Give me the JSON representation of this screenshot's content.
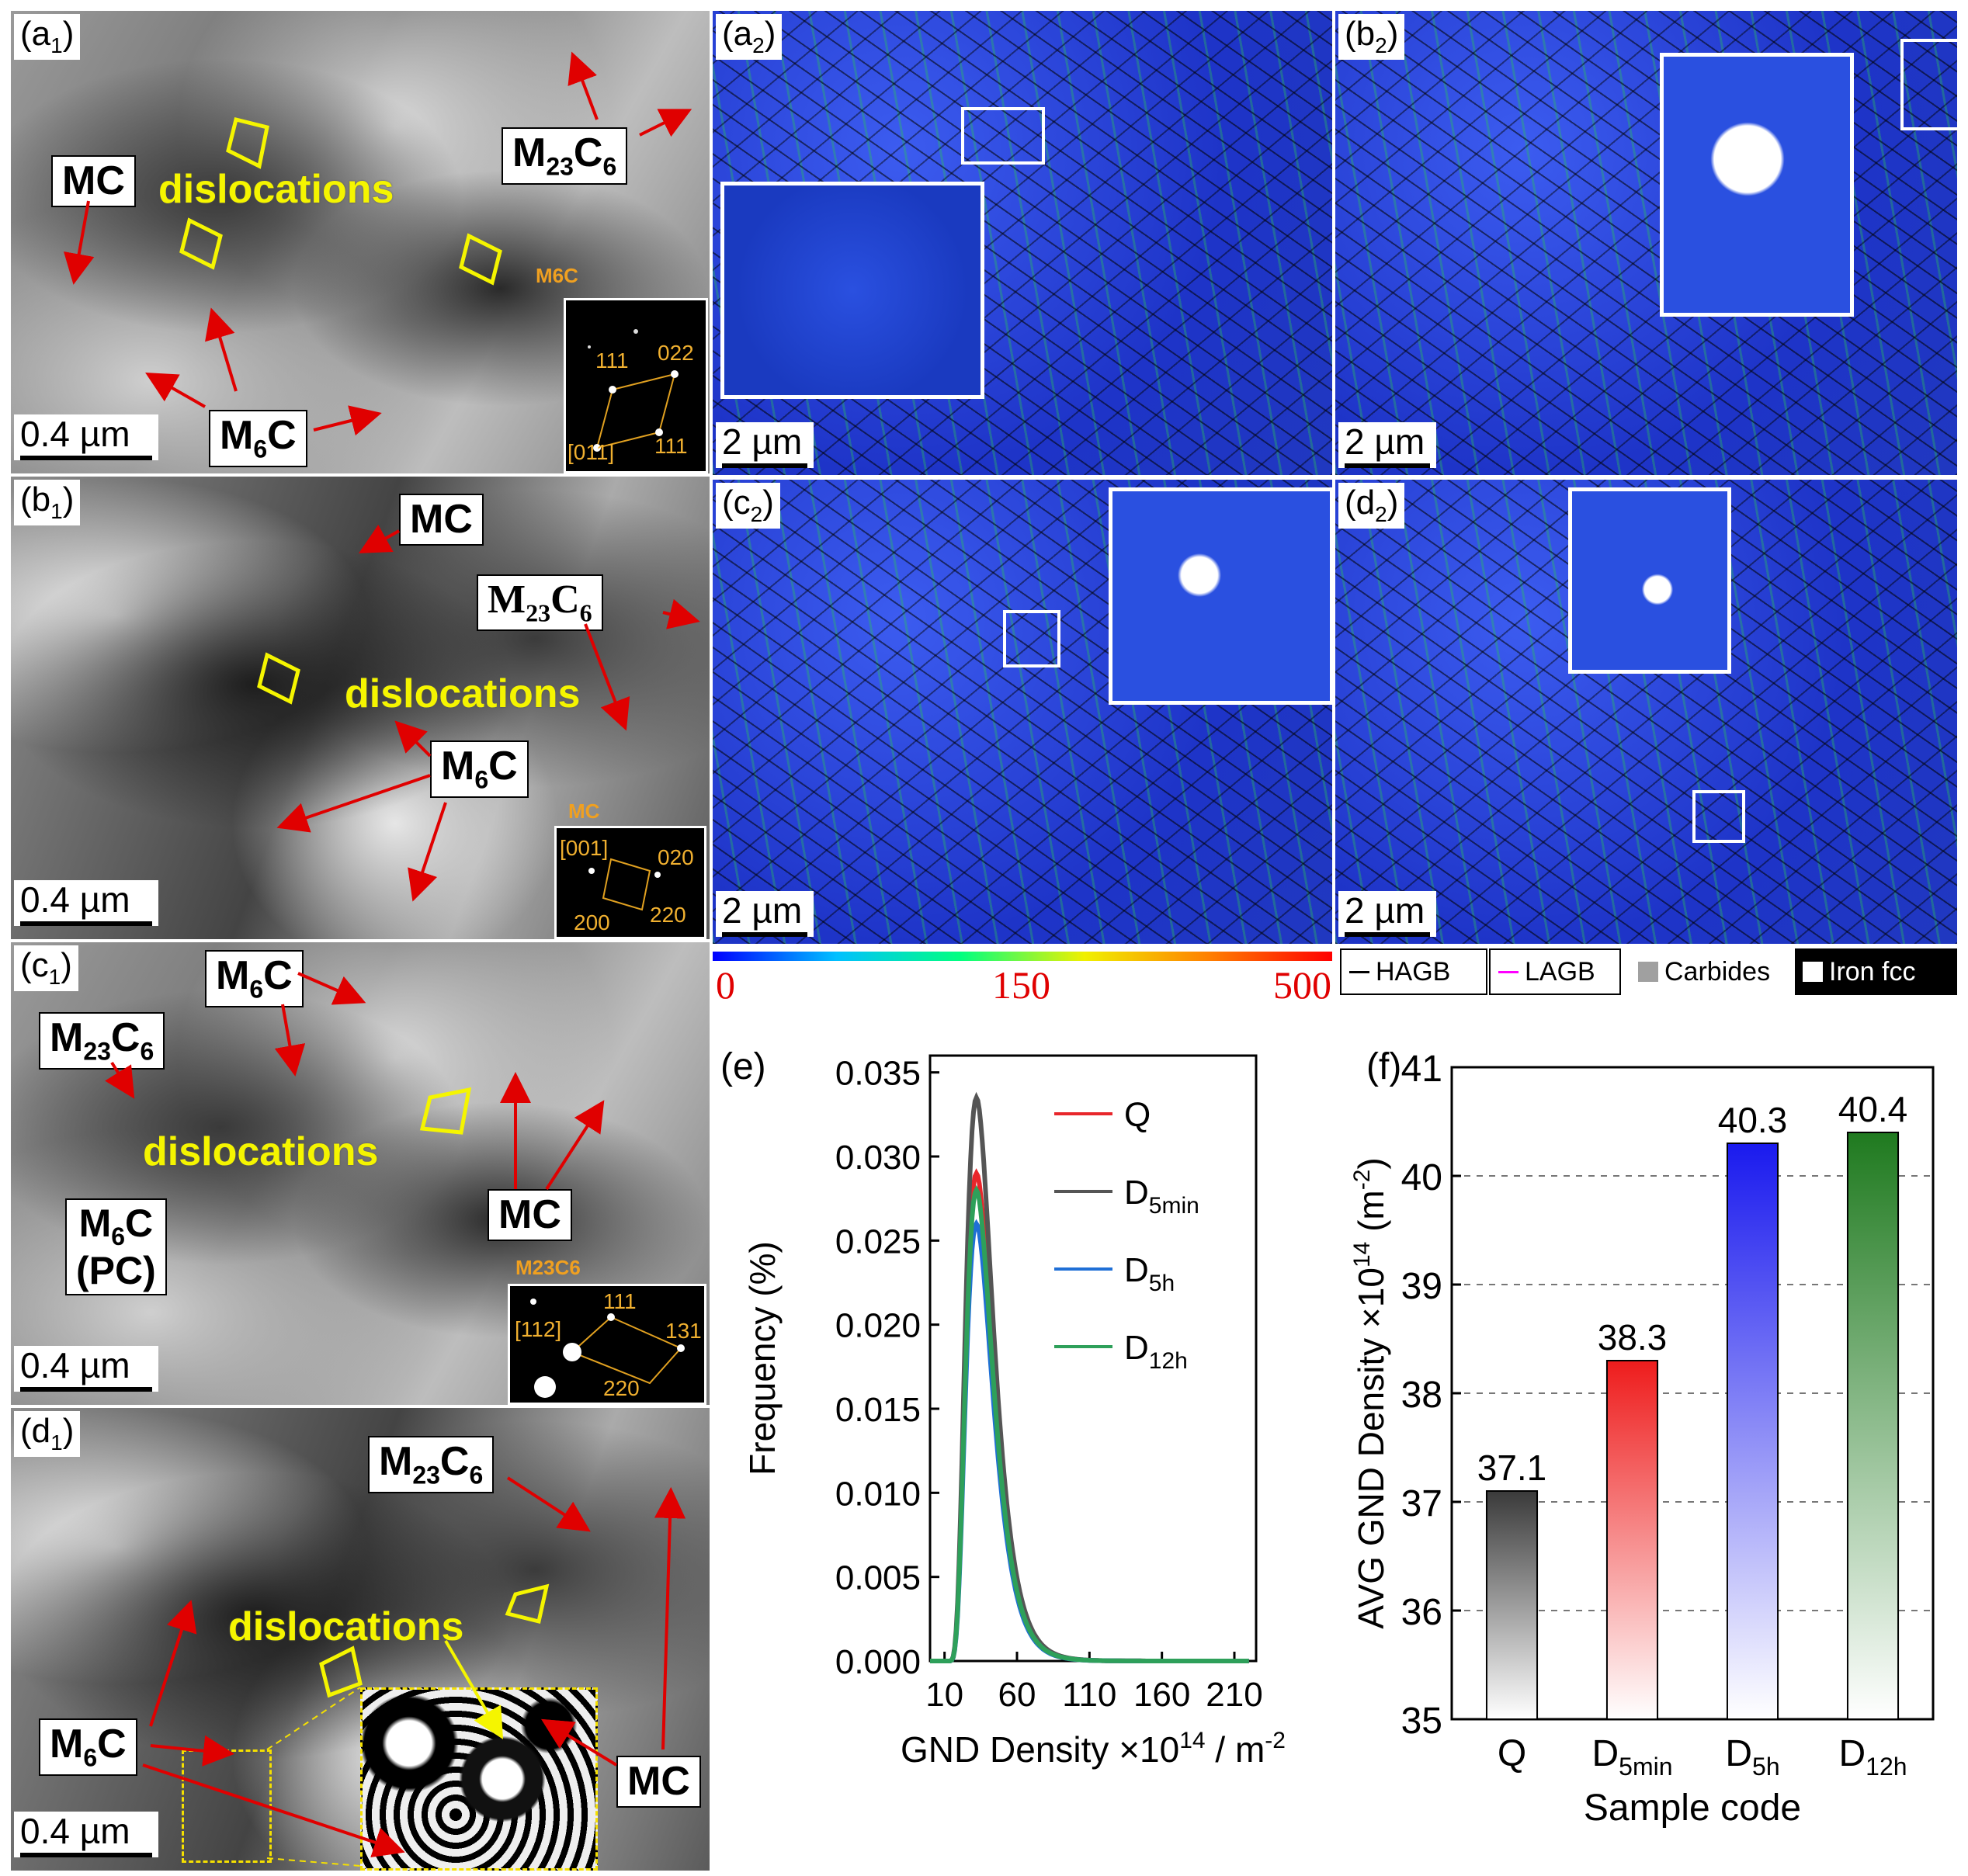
{
  "panels_tem": {
    "a1": {
      "label": "(a",
      "sub": "1",
      "label_end": ")",
      "scale": "0.4 µm",
      "dislocations": "dislocations",
      "mc": "MC",
      "m6c": "M",
      "m6c_sub": "6",
      "m6c_end": "C",
      "m23": "M",
      "m23_sub": "23",
      "m23_mid": "C",
      "m23_sub2": "6",
      "saed_tag": "M6C",
      "saed_labels": [
        "111",
        "022",
        "[011]",
        "111"
      ]
    },
    "b1": {
      "label": "(b",
      "sub": "1",
      "label_end": ")",
      "scale": "0.4 µm",
      "dislocations": "dislocations",
      "mc": "MC",
      "m6c": "M",
      "m6c_sub": "6",
      "m6c_end": "C",
      "m23": "M",
      "m23_sub": "23",
      "m23_mid": "C",
      "m23_sub2": "6",
      "saed_tag": "MC",
      "saed_labels": [
        "[001]",
        "020",
        "200",
        "220"
      ]
    },
    "c1": {
      "label": "(c",
      "sub": "1",
      "label_end": ")",
      "scale": "0.4 µm",
      "dislocations": "dislocations",
      "mc": "MC",
      "m6c": "M",
      "m6c_sub": "6",
      "m6c_end": "C",
      "m23": "M",
      "m23_sub": "23",
      "m23_mid": "C",
      "m23_sub2": "6",
      "pc_line1": "M",
      "pc_sub": "6",
      "pc_end": "C",
      "pc_line2": "(PC)",
      "saed_tag": "M23C6",
      "saed_labels": [
        "111",
        "[112]",
        "131",
        "220"
      ]
    },
    "d1": {
      "label": "(d",
      "sub": "1",
      "label_end": ")",
      "scale": "0.4 µm",
      "dislocations": "dislocations",
      "mc": "MC",
      "m6c": "M",
      "m6c_sub": "6",
      "m6c_end": "C",
      "m23": "M",
      "m23_sub": "23",
      "m23_mid": "C",
      "m23_sub2": "6"
    }
  },
  "panels_ebsd": {
    "a2": {
      "label": "(a",
      "sub": "2",
      "label_end": ")",
      "scale": "2 µm"
    },
    "b2": {
      "label": "(b",
      "sub": "2",
      "label_end": ")",
      "scale": "2 µm"
    },
    "c2": {
      "label": "(c",
      "sub": "2",
      "label_end": ")",
      "scale": "2 µm"
    },
    "d2": {
      "label": "(d",
      "sub": "2",
      "label_end": ")",
      "scale": "2 µm"
    }
  },
  "colorbar": {
    "min": "0",
    "mid": "150",
    "max": "500",
    "colors": [
      "#0000ff",
      "#00c0ff",
      "#00ff80",
      "#f0f000",
      "#ff8000",
      "#ff0000"
    ]
  },
  "legend": {
    "hagb": "HAGB",
    "lagb": "LAGB",
    "carbides": "Carbides",
    "iron": "Iron fcc",
    "hagb_color": "#000000",
    "lagb_color": "#ff00ff",
    "carbide_color": "#a0a0a0",
    "iron_color": "#ffffff"
  },
  "chart_data": [
    {
      "panel": "(e)",
      "type": "line",
      "xlabel": "GND Density ×10",
      "xlabel_sup": "14",
      "xlabel_end": " / m",
      "xlabel_sup2": "-2",
      "ylabel": "Frequency (%)",
      "xlim": [
        0,
        225
      ],
      "ylim": [
        0,
        0.036
      ],
      "xticks": [
        "10",
        "60",
        "110",
        "160",
        "210"
      ],
      "yticks": [
        "0.000",
        "0.005",
        "0.010",
        "0.015",
        "0.020",
        "0.025",
        "0.030",
        "0.035"
      ],
      "series": [
        {
          "name": "Q",
          "color": "#e8262b",
          "peak_x": 32,
          "peak_y": 0.029
        },
        {
          "name": "D5min",
          "name_base": "D",
          "name_sub": "5min",
          "color": "#555555",
          "peak_x": 32,
          "peak_y": 0.0335
        },
        {
          "name": "D5h",
          "name_base": "D",
          "name_sub": "5h",
          "color": "#1f6fd6",
          "peak_x": 32,
          "peak_y": 0.026
        },
        {
          "name": "D12h",
          "name_base": "D",
          "name_sub": "12h",
          "color": "#2ea05a",
          "peak_x": 32,
          "peak_y": 0.028
        }
      ]
    },
    {
      "panel": "(f)",
      "type": "bar",
      "categories": [
        "Q",
        "D5min",
        "D5h",
        "D12h"
      ],
      "category_base": [
        "Q",
        "D",
        "D",
        "D"
      ],
      "category_sub": [
        "",
        "5min",
        "5h",
        "12h"
      ],
      "values": [
        37.1,
        38.3,
        40.3,
        40.4
      ],
      "value_labels": [
        "37.1",
        "38.3",
        "40.3",
        "40.4"
      ],
      "colors": [
        "#3a3a3a",
        "#ee1c1c",
        "#1a1aee",
        "#1f7a1f"
      ],
      "xlabel": "Sample code",
      "ylabel": "AVG GND Density ×10",
      "ylabel_sup": "14",
      "ylabel_end": " (m",
      "ylabel_sup2": "-2",
      "ylabel_close": ")",
      "ylim": [
        35,
        41
      ],
      "yticks": [
        "35",
        "36",
        "37",
        "38",
        "39",
        "40",
        "41"
      ],
      "grid": "dashed horizontal"
    }
  ]
}
